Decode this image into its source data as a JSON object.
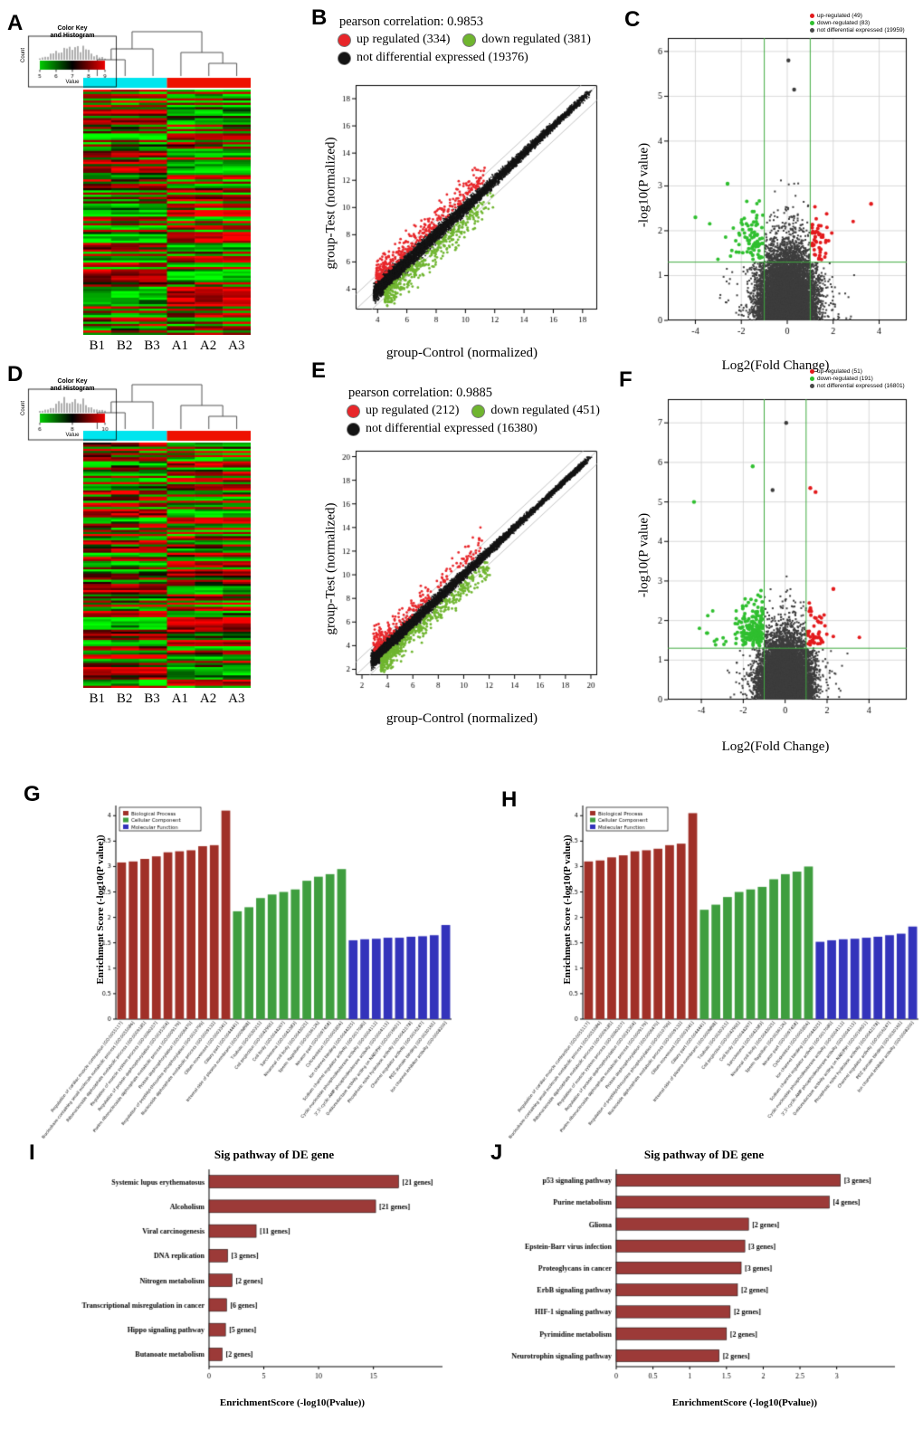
{
  "chart_data": [
    {
      "panel": "A",
      "type": "heatmap",
      "seed": 11,
      "rows": 112,
      "columns": [
        "B1",
        "B2",
        "B3",
        "A1",
        "A2",
        "A3"
      ],
      "group_bar_colors": [
        "#00e5ee",
        "#ee1100"
      ],
      "low_color": "#00cc00",
      "high_color": "#ee0000",
      "color_key": {
        "title_lines": [
          "Color Key",
          "and Histogram"
        ],
        "xlabel": "Value",
        "ylabel": "Count",
        "ticks": [
          5,
          6,
          7,
          8,
          9
        ]
      }
    },
    {
      "panel": "B",
      "type": "scatter",
      "seed": 21,
      "title": "pearson correlation: 0.9853",
      "legend": [
        {
          "label": "up regulated (334)",
          "color": "#e8262a"
        },
        {
          "label": "down regulated (381)",
          "color": "#6fb52f"
        },
        {
          "label": "not differential expressed (19376)",
          "color": "#141414"
        }
      ],
      "counts": {
        "up": 334,
        "down": 381,
        "ns": 19376
      },
      "xlabel": "group-Control (normalized)",
      "ylabel": "group-Test (normalized)",
      "xlim": [
        2.5,
        19
      ],
      "ylim": [
        2.5,
        19
      ],
      "xticks": [
        4,
        6,
        8,
        10,
        12,
        14,
        16,
        18
      ],
      "yticks": [
        4,
        6,
        8,
        10,
        12,
        14,
        16,
        18
      ]
    },
    {
      "panel": "C",
      "type": "volcano",
      "seed": 31,
      "legend": [
        {
          "label": "up-regulated (49)",
          "color": "#e31a1c"
        },
        {
          "label": "down-regulated (83)",
          "color": "#2fbf2f"
        },
        {
          "label": "not differential expressed (19959)",
          "color": "#4a4a4a"
        }
      ],
      "counts": {
        "up": 49,
        "down": 83,
        "ns": 19959
      },
      "xlabel": "Log2(Fold Change)",
      "ylabel": "-log10(P value)",
      "xlim": [
        -5.2,
        5.2
      ],
      "ylim": [
        0,
        6.3
      ],
      "xticks": [
        -4,
        -2,
        0,
        2,
        4
      ],
      "yticks": [
        0,
        1,
        2,
        3,
        4,
        5,
        6
      ],
      "cutoff_x": [
        -1,
        1
      ],
      "cutoff_y": 1.3,
      "outliers": [
        [
          0.05,
          5.8,
          2
        ],
        [
          0.3,
          5.15,
          2
        ],
        [
          3.65,
          2.6,
          0
        ],
        [
          -2.6,
          3.05,
          1
        ],
        [
          -4.0,
          2.3,
          1
        ]
      ]
    },
    {
      "panel": "D",
      "type": "heatmap",
      "seed": 13,
      "rows": 118,
      "columns": [
        "B1",
        "B2",
        "B3",
        "A1",
        "A2",
        "A3"
      ],
      "group_bar_colors": [
        "#00e5ee",
        "#ee1100"
      ],
      "low_color": "#00cc00",
      "high_color": "#ee0000",
      "color_key": {
        "title_lines": [
          "Color Key",
          "and Histogram"
        ],
        "xlabel": "Value",
        "ylabel": "Count",
        "ticks": [
          6,
          8,
          10
        ]
      }
    },
    {
      "panel": "E",
      "type": "scatter",
      "seed": 23,
      "title": "pearson correlation: 0.9885",
      "legend": [
        {
          "label": "up regulated (212)",
          "color": "#e8262a"
        },
        {
          "label": "down regulated (451)",
          "color": "#6fb52f"
        },
        {
          "label": "not differential expressed (16380)",
          "color": "#141414"
        }
      ],
      "counts": {
        "up": 212,
        "down": 451,
        "ns": 16380
      },
      "xlabel": "group-Control (normalized)",
      "ylabel": "group-Test (normalized)",
      "xlim": [
        1.5,
        20.5
      ],
      "ylim": [
        1.5,
        20.5
      ],
      "xticks": [
        2,
        4,
        6,
        8,
        10,
        12,
        14,
        16,
        18,
        20
      ],
      "yticks": [
        2,
        4,
        6,
        8,
        10,
        12,
        14,
        16,
        18,
        20
      ]
    },
    {
      "panel": "F",
      "type": "volcano",
      "seed": 33,
      "legend": [
        {
          "label": "up-regulated (51)",
          "color": "#e31a1c"
        },
        {
          "label": "down-regulated (191)",
          "color": "#2fbf2f"
        },
        {
          "label": "not differential expressed (16801)",
          "color": "#4a4a4a"
        }
      ],
      "counts": {
        "up": 51,
        "down": 191,
        "ns": 16801
      },
      "xlabel": "Log2(Fold Change)",
      "ylabel": "-log10(P value)",
      "xlim": [
        -5.6,
        5.8
      ],
      "ylim": [
        0,
        7.6
      ],
      "xticks": [
        -4,
        -2,
        0,
        2,
        4
      ],
      "yticks": [
        0,
        1,
        2,
        3,
        4,
        5,
        6,
        7
      ],
      "cutoff_x": [
        -1,
        1
      ],
      "cutoff_y": 1.3,
      "outliers": [
        [
          0.05,
          7.0,
          2
        ],
        [
          -1.55,
          5.9,
          1
        ],
        [
          1.2,
          5.35,
          0
        ],
        [
          1.45,
          5.25,
          0
        ],
        [
          -4.35,
          5.0,
          1
        ],
        [
          -0.6,
          5.3,
          2
        ],
        [
          2.3,
          2.8,
          0
        ]
      ]
    },
    {
      "panel": "G",
      "type": "go_bar",
      "ylabel": "Enrichment Score (-log10(P value))",
      "ylim": [
        0,
        4.2
      ],
      "yticks": [
        0,
        0.5,
        1,
        1.5,
        2,
        2.5,
        3,
        3.5,
        4
      ],
      "legend": [
        {
          "label": "Biological Process",
          "color": "#a03028"
        },
        {
          "label": "Cellular Component",
          "color": "#3f9e3f"
        },
        {
          "label": "Molecular Function",
          "color": "#3333bb"
        }
      ],
      "groups": [
        {
          "color": "#a03028",
          "items": [
            [
              "Regulation of cardiac muscle contraction [GO:0055117]",
              3.08
            ],
            [
              "Nucleobase-containing small molecule metabolic process [GO:0055086]",
              3.1
            ],
            [
              "Ribonucleoside diphosphate metabolic process [GO:0009185]",
              3.15
            ],
            [
              "Regulation of muscle system process [GO:0090257]",
              3.2
            ],
            [
              "Regulation of protein dephosphorylation [GO:0035304]",
              3.28
            ],
            [
              "Purine ribonucleoside diphosphate metabolic process [GO:0009179]",
              3.3
            ],
            [
              "Protein dephosphorylation [GO:0006470]",
              3.32
            ],
            [
              "Regulation of peptidyl-threonine phosphorylation [GO:0010799]",
              3.4
            ],
            [
              "Nucleoside diphosphate metabolic process [GO:0009132]",
              3.42
            ],
            [
              "Cilium movement [GO:0003341]",
              4.1
            ]
          ]
        },
        {
          "color": "#3f9e3f",
          "items": [
            [
              "Ciliary part [GO:0044441]",
              2.12
            ],
            [
              "Internal side of plasma membrane [GO:0009898]",
              2.2
            ],
            [
              "T-tubule [GO:0030315]",
              2.38
            ],
            [
              "Cell projection [GO:0042995]",
              2.45
            ],
            [
              "Cell body [GO:0044297]",
              2.5
            ],
            [
              "Sarcolemma [GO:0042383]",
              2.55
            ],
            [
              "Neuronal cell body [GO:0043025]",
              2.72
            ],
            [
              "Sperm flagellum [GO:0036126]",
              2.8
            ],
            [
              "Neuron part [GO:0097458]",
              2.85
            ],
            [
              "Cytoskeleton [GO:0005856]",
              2.95
            ]
          ]
        },
        {
          "color": "#3333bb",
          "items": [
            [
              "Ion channel binding [GO:0044325]",
              1.55
            ],
            [
              "Sodium channel regulator activity [GO:0017080]",
              1.57
            ],
            [
              "Cyclic-nucleotide phosphodiesterase activity [GO:0004112]",
              1.58
            ],
            [
              "3',5'-cyclic-AMP phosphodiesterase activity [GO:0004115]",
              1.6
            ],
            [
              "Oxidoreductase activity acting on NAD(P)H [GO:0016651]",
              1.6
            ],
            [
              "Phosphoric ester hydrolase activity [GO:0042578]",
              1.62
            ],
            [
              "Channel regulator activity [GO:0016247]",
              1.63
            ],
            [
              "PDZ domain binding [GO:0030165]",
              1.65
            ],
            [
              "Ion channel inhibitor activity [GO:0008200]",
              1.85
            ]
          ]
        }
      ]
    },
    {
      "panel": "H",
      "type": "go_bar",
      "ylabel": "Enrichment Score (-log10(P value))",
      "ylim": [
        0,
        4.2
      ],
      "yticks": [
        0,
        0.5,
        1,
        1.5,
        2,
        2.5,
        3,
        3.5,
        4
      ],
      "legend": [
        {
          "label": "Biological Process",
          "color": "#a03028"
        },
        {
          "label": "Cellular Component",
          "color": "#3f9e3f"
        },
        {
          "label": "Molecular Function",
          "color": "#3333bb"
        }
      ],
      "groups": [
        {
          "color": "#a03028",
          "items": [
            [
              "Regulation of cardiac muscle contraction [GO:0055117]",
              3.1
            ],
            [
              "Nucleobase-containing small molecule metabolic process [GO:0055086]",
              3.12
            ],
            [
              "Ribonucleoside diphosphate metabolic process [GO:0009185]",
              3.18
            ],
            [
              "Regulation of muscle system process [GO:0090257]",
              3.22
            ],
            [
              "Regulation of protein dephosphorylation [GO:0035304]",
              3.3
            ],
            [
              "Purine ribonucleoside diphosphate metabolic process [GO:0009179]",
              3.32
            ],
            [
              "Protein dephosphorylation [GO:0006470]",
              3.35
            ],
            [
              "Regulation of peptidyl-threonine phosphorylation [GO:0010799]",
              3.42
            ],
            [
              "Nucleoside diphosphate metabolic process [GO:0009132]",
              3.45
            ],
            [
              "Cilium movement [GO:0003341]",
              4.05
            ]
          ]
        },
        {
          "color": "#3f9e3f",
          "items": [
            [
              "Ciliary part [GO:0044441]",
              2.15
            ],
            [
              "Internal side of plasma membrane [GO:0009898]",
              2.25
            ],
            [
              "T-tubule [GO:0030315]",
              2.4
            ],
            [
              "Cell projection [GO:0042995]",
              2.5
            ],
            [
              "Cell body [GO:0044297]",
              2.55
            ],
            [
              "Sarcolemma [GO:0042383]",
              2.6
            ],
            [
              "Neuronal cell body [GO:0043025]",
              2.75
            ],
            [
              "Sperm flagellum [GO:0036126]",
              2.85
            ],
            [
              "Neuron part [GO:0097458]",
              2.9
            ],
            [
              "Cytoskeleton [GO:0005856]",
              3.0
            ]
          ]
        },
        {
          "color": "#3333bb",
          "items": [
            [
              "Ion channel binding [GO:0044325]",
              1.52
            ],
            [
              "Sodium channel regulator activity [GO:0017080]",
              1.55
            ],
            [
              "Cyclic-nucleotide phosphodiesterase activity [GO:0004112]",
              1.57
            ],
            [
              "3',5'-cyclic-AMP phosphodiesterase activity [GO:0004115]",
              1.58
            ],
            [
              "Oxidoreductase activity acting on NAD(P)H [GO:0016651]",
              1.6
            ],
            [
              "Phosphoric ester hydrolase activity [GO:0042578]",
              1.62
            ],
            [
              "Channel regulator activity [GO:0016247]",
              1.65
            ],
            [
              "PDZ domain binding [GO:0030165]",
              1.68
            ],
            [
              "Ion channel inhibitor activity [GO:0008200]",
              1.82
            ]
          ]
        }
      ]
    },
    {
      "panel": "I",
      "type": "pathway_bar",
      "title": "Sig pathway of DE gene",
      "xlabel": "EnrichmentScore (-log10(Pvalue))",
      "color": "#9c3a38",
      "label_width": 195,
      "xlim": [
        0,
        18
      ],
      "xticks": [
        0,
        5,
        10,
        15
      ],
      "items": [
        {
          "label": "Systemic lupus erythematosus",
          "genes": "[21 genes]",
          "value": 17.3
        },
        {
          "label": "Alcoholism",
          "genes": "[21 genes]",
          "value": 15.2
        },
        {
          "label": "Viral carcinogenesis",
          "genes": "[11 genes]",
          "value": 4.3
        },
        {
          "label": "DNA replication",
          "genes": "[3 genes]",
          "value": 1.7
        },
        {
          "label": "Nitrogen metabolism",
          "genes": "[2 genes]",
          "value": 2.1
        },
        {
          "label": "Transcriptional misregulation in cancer",
          "genes": "[6 genes]",
          "value": 1.6
        },
        {
          "label": "Hippo signaling pathway",
          "genes": "[5 genes]",
          "value": 1.5
        },
        {
          "label": "Butanoate metabolism",
          "genes": "[2 genes]",
          "value": 1.2
        }
      ]
    },
    {
      "panel": "J",
      "type": "pathway_bar",
      "title": "Sig pathway of DE gene",
      "xlabel": "EnrichmentScore (-log10(Pvalue))",
      "color": "#9c3a38",
      "label_width": 140,
      "xlim": [
        0,
        3.3
      ],
      "xticks": [
        0,
        0.5,
        1,
        1.5,
        2,
        2.5,
        3
      ],
      "items": [
        {
          "label": "p53 signaling pathway",
          "genes": "[3 genes]",
          "value": 3.05
        },
        {
          "label": "Purine metabolism",
          "genes": "[4 genes]",
          "value": 2.9
        },
        {
          "label": "Glioma",
          "genes": "[2 genes]",
          "value": 1.8
        },
        {
          "label": "Epstein-Barr virus infection",
          "genes": "[3 genes]",
          "value": 1.75
        },
        {
          "label": "Proteoglycans in cancer",
          "genes": "[3 genes]",
          "value": 1.7
        },
        {
          "label": "ErbB signaling pathway",
          "genes": "[2 genes]",
          "value": 1.65
        },
        {
          "label": "HIF-1 signaling pathway",
          "genes": "[2 genes]",
          "value": 1.55
        },
        {
          "label": "Pyrimidine metabolism",
          "genes": "[2 genes]",
          "value": 1.5
        },
        {
          "label": "Neurotrophin signaling pathway",
          "genes": "[2 genes]",
          "value": 1.4
        }
      ]
    }
  ]
}
